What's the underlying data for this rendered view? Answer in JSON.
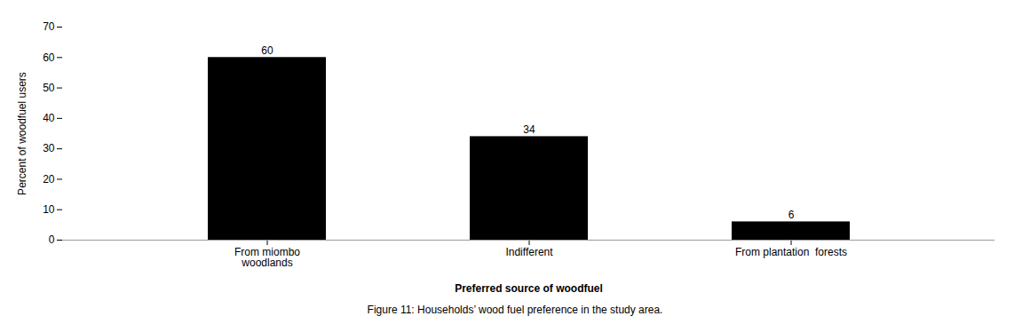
{
  "chart_data": {
    "type": "bar",
    "categories": [
      "From miombo\nwoodlands",
      "Indifferent",
      "From plantation  forests"
    ],
    "values": [
      60,
      34,
      6
    ],
    "ylim": [
      0,
      70
    ],
    "yticks": [
      0,
      10,
      20,
      30,
      40,
      50,
      60,
      70
    ],
    "ylabel": "Percent of woodfuel users",
    "xlabel": "Preferred source of woodfuel",
    "caption": "Figure 11: Households’ wood fuel preference in the study area.",
    "grid": false,
    "data_labels": true
  }
}
